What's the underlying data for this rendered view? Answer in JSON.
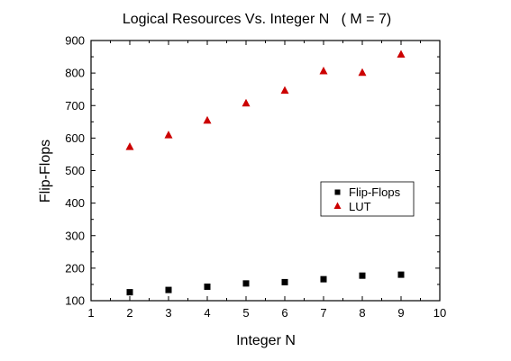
{
  "chart_data": {
    "type": "scatter",
    "title": "Logical Resources Vs. Integer N   ( M = 7)",
    "xlabel": "Integer N",
    "ylabel": "Flip-Flops",
    "xlim": [
      1,
      10
    ],
    "ylim": [
      100,
      900
    ],
    "xticks": [
      "1",
      "2",
      "3",
      "4",
      "5",
      "6",
      "7",
      "8",
      "9",
      "10"
    ],
    "yticks": [
      "100",
      "200",
      "300",
      "400",
      "500",
      "600",
      "700",
      "800",
      "900"
    ],
    "legend_position": "right-middle",
    "series": [
      {
        "name": "Flip-Flops",
        "marker": "square",
        "color": "#000000",
        "x": [
          2,
          3,
          4,
          5,
          6,
          7,
          8,
          9
        ],
        "y": [
          126,
          133,
          143,
          153,
          157,
          166,
          177,
          180
        ]
      },
      {
        "name": "LUT",
        "marker": "triangle",
        "color": "#cc0000",
        "x": [
          2,
          3,
          4,
          5,
          6,
          7,
          8,
          9
        ],
        "y": [
          573,
          609,
          654,
          707,
          746,
          806,
          801,
          857
        ]
      }
    ]
  }
}
